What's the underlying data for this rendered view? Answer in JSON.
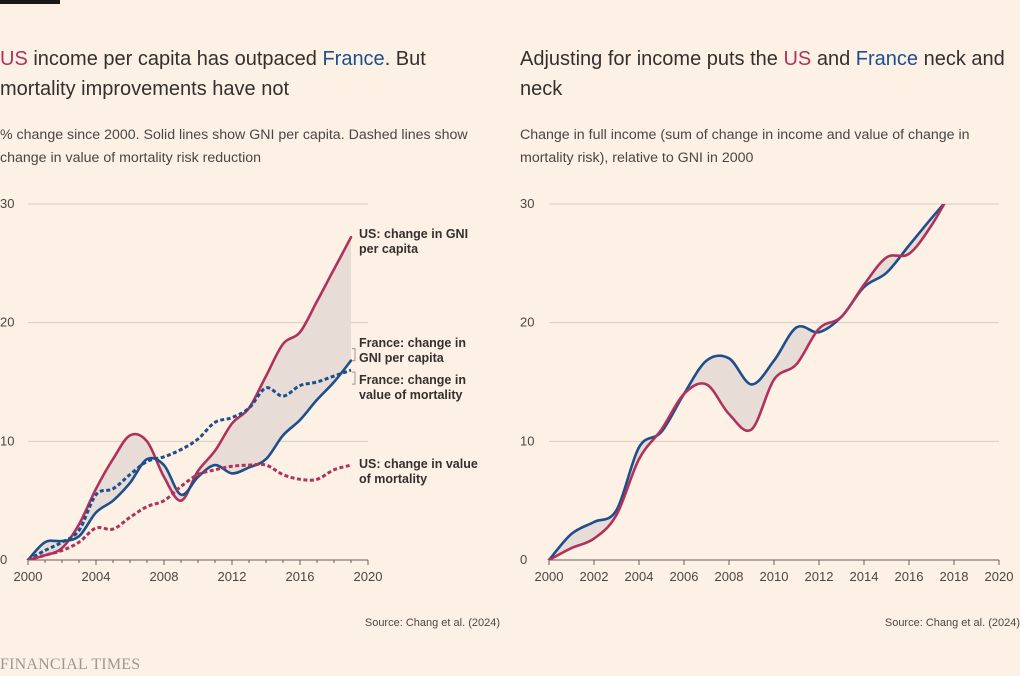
{
  "colors": {
    "background": "#fdf1e6",
    "us": "#b0325a",
    "france": "#1f4e8c",
    "gap_fill": "#e7dcd6",
    "grid": "#d9ccc4",
    "axis": "#66605c",
    "text": "#33302e"
  },
  "left": {
    "title": {
      "us": "US",
      "p1": " income per capita has outpaced ",
      "france": "France",
      "p2": ". But mortality improvements have not"
    },
    "subtitle": "% change since 2000. Solid lines show GNI per capita. Dashed lines show change in value of mortality risk reduction",
    "source": "Source: Chang et al. (2024)",
    "labels": {
      "us_gni": [
        "US: change in GNI",
        "per capita"
      ],
      "fr_gni": [
        "France: change in",
        "GNI per capita"
      ],
      "fr_mort": [
        "France: change in",
        "value of mortality"
      ],
      "us_mort": [
        "US: change in value",
        "of mortality"
      ]
    }
  },
  "right": {
    "title": {
      "p0": "Adjusting for income puts the ",
      "us": "US",
      "p1": " and ",
      "france": "France",
      "p2": " neck and neck"
    },
    "subtitle": "Change in full income (sum of change in income and value of change in mortality risk), relative to GNI in 2000",
    "source": "Source: Chang et al. (2024)"
  },
  "footer": {
    "brand": "FINANCIAL TIMES"
  },
  "chart_data": [
    {
      "type": "line",
      "title": "US income per capita has outpaced France. But mortality improvements have not",
      "xlim": [
        2000,
        2020
      ],
      "ylim": [
        0,
        30
      ],
      "x_ticks": [
        2000,
        2004,
        2008,
        2012,
        2016,
        2020
      ],
      "y_ticks": [
        0,
        10,
        20,
        30
      ],
      "grid": true,
      "shaded_gap_between": [
        "US: change in GNI per capita",
        "France: change in GNI per capita"
      ],
      "series": [
        {
          "name": "US: change in GNI per capita",
          "style": "solid",
          "color": "#b0325a",
          "x": [
            2000,
            2001,
            2002,
            2003,
            2004,
            2005,
            2006,
            2007,
            2008,
            2009,
            2010,
            2011,
            2012,
            2013,
            2014,
            2015,
            2016,
            2017,
            2018,
            2019
          ],
          "y": [
            0,
            0.4,
            1.0,
            3.0,
            6.0,
            8.5,
            10.5,
            10.0,
            7.0,
            5.0,
            7.5,
            9.2,
            11.5,
            12.8,
            15.5,
            18.2,
            19.2,
            21.8,
            24.5,
            27.2
          ]
        },
        {
          "name": "France: change in GNI per capita",
          "style": "solid",
          "color": "#1f4e8c",
          "x": [
            2000,
            2001,
            2002,
            2003,
            2004,
            2005,
            2006,
            2007,
            2008,
            2009,
            2010,
            2011,
            2012,
            2013,
            2014,
            2015,
            2016,
            2017,
            2018,
            2019
          ],
          "y": [
            0,
            1.5,
            1.6,
            2.0,
            4.0,
            5.0,
            6.5,
            8.5,
            8.0,
            5.5,
            7.0,
            8.0,
            7.3,
            7.8,
            8.5,
            10.5,
            11.8,
            13.5,
            15.0,
            16.8
          ]
        },
        {
          "name": "France: change in value of mortality",
          "style": "dashed",
          "color": "#1f4e8c",
          "x": [
            2000,
            2001,
            2002,
            2003,
            2004,
            2005,
            2006,
            2007,
            2008,
            2009,
            2010,
            2011,
            2012,
            2013,
            2014,
            2015,
            2016,
            2017,
            2018,
            2019
          ],
          "y": [
            0,
            0.8,
            1.5,
            2.5,
            5.5,
            6.0,
            7.2,
            8.3,
            8.7,
            9.3,
            10.2,
            11.6,
            12.0,
            12.8,
            14.5,
            13.8,
            14.7,
            15.0,
            15.5,
            16.0
          ]
        },
        {
          "name": "US: change in value of mortality",
          "style": "dashed",
          "color": "#b0325a",
          "x": [
            2000,
            2001,
            2002,
            2003,
            2004,
            2005,
            2006,
            2007,
            2008,
            2009,
            2010,
            2011,
            2012,
            2013,
            2014,
            2015,
            2016,
            2017,
            2018,
            2019
          ],
          "y": [
            0,
            0.4,
            0.8,
            1.5,
            2.7,
            2.6,
            3.6,
            4.5,
            5.0,
            6.2,
            7.2,
            7.6,
            7.9,
            8.0,
            8.0,
            7.2,
            6.8,
            6.8,
            7.6,
            8.0
          ]
        }
      ]
    },
    {
      "type": "line",
      "title": "Adjusting for income puts the US and France neck and neck",
      "xlim": [
        2000,
        2020
      ],
      "ylim": [
        0,
        30
      ],
      "x_ticks": [
        2000,
        2002,
        2004,
        2006,
        2008,
        2010,
        2012,
        2014,
        2016,
        2018,
        2020
      ],
      "y_ticks": [
        0,
        10,
        20,
        30
      ],
      "grid": true,
      "shaded_gap_between": [
        "US",
        "France"
      ],
      "series": [
        {
          "name": "France",
          "color": "#1f4e8c",
          "x": [
            2000,
            2001,
            2002,
            2003,
            2004,
            2005,
            2006,
            2007,
            2008,
            2009,
            2010,
            2011,
            2012,
            2013,
            2014,
            2015,
            2016,
            2017,
            2018
          ],
          "y": [
            0,
            2.2,
            3.2,
            4.2,
            9.5,
            10.8,
            14.0,
            16.8,
            17.0,
            14.8,
            16.8,
            19.6,
            19.2,
            20.5,
            23.0,
            24.2,
            26.5,
            28.8,
            31.0
          ]
        },
        {
          "name": "US",
          "color": "#b0325a",
          "x": [
            2000,
            2001,
            2002,
            2003,
            2004,
            2005,
            2006,
            2007,
            2008,
            2009,
            2010,
            2011,
            2012,
            2013,
            2014,
            2015,
            2016,
            2017,
            2018
          ],
          "y": [
            0,
            1.0,
            1.8,
            3.8,
            8.5,
            11.0,
            14.0,
            14.8,
            12.3,
            11.0,
            15.2,
            16.5,
            19.5,
            20.5,
            23.2,
            25.5,
            25.8,
            28.2,
            31.5
          ]
        }
      ]
    }
  ]
}
